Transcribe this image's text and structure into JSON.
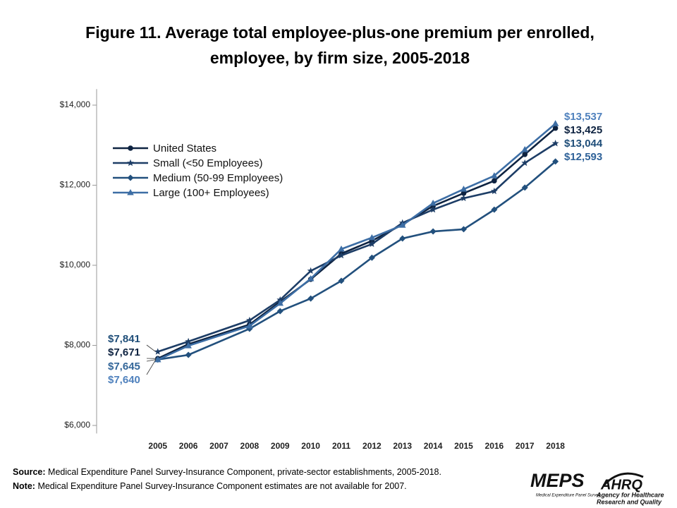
{
  "chart_data": {
    "type": "line",
    "title": [
      "Figure 11. Average total employee-plus-one premium per enrolled,",
      "employee, by firm size, 2005-2018"
    ],
    "x": [
      2005,
      2006,
      2008,
      2009,
      2010,
      2011,
      2012,
      2013,
      2014,
      2015,
      2016,
      2017,
      2018
    ],
    "xlim": [
      2003,
      2019
    ],
    "xticks": [
      2005,
      2006,
      2007,
      2008,
      2009,
      2010,
      2011,
      2012,
      2013,
      2014,
      2015,
      2016,
      2017,
      2018
    ],
    "ylim": [
      5800,
      14400
    ],
    "yticks": [
      {
        "value": 6000,
        "label": "$6,000"
      },
      {
        "value": 8000,
        "label": "$8,000"
      },
      {
        "value": 10000,
        "label": "$10,000"
      },
      {
        "value": 12000,
        "label": "$12,000"
      },
      {
        "value": 14000,
        "label": "$14,000"
      }
    ],
    "grid": false,
    "legend": "upper-left",
    "series": [
      {
        "name": "United States",
        "color": "#0e2341",
        "marker": "circle",
        "values": [
          7671,
          8030,
          8520,
          9090,
          9650,
          10290,
          10610,
          11020,
          11480,
          11800,
          12110,
          12770,
          13425
        ],
        "value_labels": [
          "$7,671",
          null,
          null,
          null,
          null,
          null,
          null,
          null,
          null,
          null,
          null,
          null,
          "$13,425"
        ]
      },
      {
        "name": "Small (<50 Employees)",
        "color": "#1d3d66",
        "marker": "star",
        "values": [
          7841,
          8097,
          8625,
          9136,
          9860,
          10245,
          10530,
          11060,
          11390,
          11675,
          11850,
          12555,
          13044
        ],
        "value_labels": [
          "$7,841",
          null,
          null,
          null,
          null,
          null,
          null,
          null,
          null,
          null,
          null,
          null,
          "$13,044"
        ]
      },
      {
        "name": "Medium (50-99 Employees)",
        "color": "#22507d",
        "marker": "diamond",
        "values": [
          7645,
          7762,
          8414,
          8855,
          9170,
          9612,
          10190,
          10670,
          10845,
          10900,
          11390,
          11940,
          12593
        ],
        "value_labels": [
          "$7,645",
          null,
          null,
          null,
          null,
          null,
          null,
          null,
          null,
          null,
          null,
          null,
          "$12,593"
        ]
      },
      {
        "name": "Large (100+ Employees)",
        "color": "#3d6ea5",
        "marker": "triangle",
        "values": [
          7640,
          7990,
          8485,
          9050,
          9665,
          10405,
          10690,
          11000,
          11550,
          11900,
          12235,
          12890,
          13537
        ],
        "value_labels": [
          "$7,640",
          null,
          null,
          null,
          null,
          null,
          null,
          null,
          null,
          null,
          null,
          null,
          "$13,537"
        ]
      }
    ]
  },
  "footer": {
    "source_label": "Source:",
    "source": "Medical Expenditure Panel Survey-Insurance Component,  private-sector establishments, 2005-2018.",
    "note_label": "Note:",
    "note": "Medical Expenditure Panel Survey-Insurance Component  estimates are not available for 2007."
  },
  "logos": {
    "meps": "MEPS",
    "meps_sub": "Medical Expenditure Panel Survey",
    "ahrq": "AHRQ",
    "ahrq_sub1": "Agency for Healthcare",
    "ahrq_sub2": "Research and Quality"
  }
}
